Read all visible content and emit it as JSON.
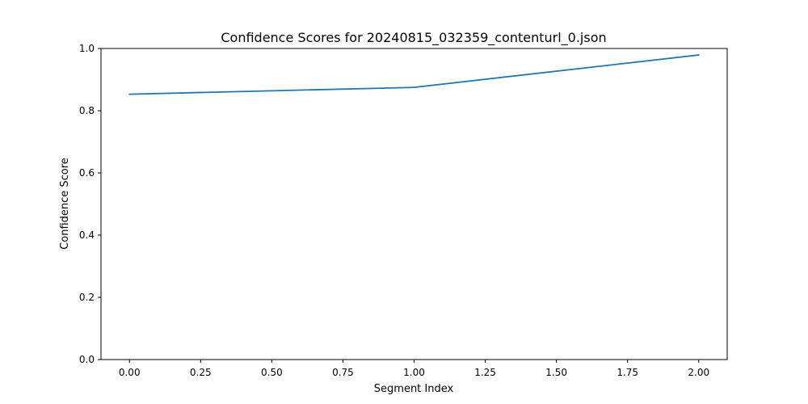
{
  "chart_data": {
    "type": "line",
    "title": "Confidence Scores for 20240815_032359_contenturl_0.json",
    "xlabel": "Segment Index",
    "ylabel": "Confidence Score",
    "xlim": [
      -0.1,
      2.1
    ],
    "ylim": [
      0.0,
      1.0
    ],
    "x_ticks": [
      0.0,
      0.25,
      0.5,
      0.75,
      1.0,
      1.25,
      1.5,
      1.75,
      2.0
    ],
    "x_tick_labels": [
      "0.00",
      "0.25",
      "0.50",
      "0.75",
      "1.00",
      "1.25",
      "1.50",
      "1.75",
      "2.00"
    ],
    "y_ticks": [
      0.0,
      0.2,
      0.4,
      0.6,
      0.8,
      1.0
    ],
    "y_tick_labels": [
      "0.0",
      "0.2",
      "0.4",
      "0.6",
      "0.8",
      "1.0"
    ],
    "grid": false,
    "legend": "none",
    "series": [
      {
        "color": "#1f77b4",
        "x": [
          0,
          1,
          2
        ],
        "y": [
          0.853,
          0.875,
          0.979
        ]
      }
    ]
  }
}
